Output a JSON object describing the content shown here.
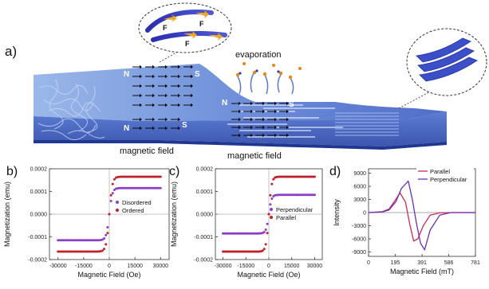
{
  "figure": {
    "panel_a": {
      "label": "a)",
      "evaporation": "evaporation",
      "magnetic_field_left": "magnetic field",
      "magnetic_field_mid": "magnetic field",
      "pole_n": "N",
      "pole_s": "S",
      "force_label": "F"
    }
  },
  "chart_data": [
    {
      "panel": "b)",
      "type": "scatter",
      "xlabel": "Magnetic Field (Oe)",
      "ylabel": "Magnetization (emu)",
      "xlim": [
        -35000,
        35000
      ],
      "ylim": [
        -0.0002,
        0.0002
      ],
      "xticks": [
        -30000,
        -15000,
        0,
        15000,
        30000
      ],
      "xtick_labels": [
        "-30000",
        "-15000",
        "0",
        "15000",
        "30000"
      ],
      "yticks": [
        -0.0002,
        -0.0001,
        0,
        0.0001,
        0.0002
      ],
      "ytick_labels": [
        "-0.0002",
        "-0.0001",
        "0.0000",
        "0.0001",
        "0.0002"
      ],
      "legend_position": "center-right",
      "series": [
        {
          "name": "Disordered",
          "color": "#8a3fc8",
          "saturation": 0.000115
        },
        {
          "name": "Ordered",
          "color": "#c0202a",
          "saturation": 0.000165
        }
      ]
    },
    {
      "panel": "c)",
      "type": "scatter",
      "xlabel": "Magnetic Field (Oe)",
      "ylabel": "Magnetization (emu)",
      "xlim": [
        -35000,
        35000
      ],
      "ylim": [
        -0.0002,
        0.0002
      ],
      "xticks": [
        -30000,
        -15000,
        0,
        15000,
        30000
      ],
      "xtick_labels": [
        "-30000",
        "-15000",
        "0",
        "15000",
        "30000"
      ],
      "yticks": [
        -0.0002,
        -0.0001,
        0,
        0.0001,
        0.0002
      ],
      "ytick_labels": [
        "-0.0002",
        "-0.0001",
        "0.0000",
        "0.0001",
        "0.0002"
      ],
      "legend_position": "center-right",
      "series": [
        {
          "name": "Perpendicular",
          "color": "#8a3fc8",
          "saturation": 8.5e-05
        },
        {
          "name": "Parallel",
          "color": "#c0202a",
          "saturation": 0.000165
        }
      ]
    },
    {
      "panel": "d)",
      "type": "line",
      "xlabel": "Magnetic Field (mT)",
      "ylabel": "Intensity",
      "xlim": [
        0,
        781
      ],
      "ylim": [
        -10000,
        10000
      ],
      "xticks": [
        0,
        195,
        391,
        586,
        781
      ],
      "xtick_labels": [
        "0",
        "195",
        "391",
        "586",
        "781"
      ],
      "yticks": [
        -9000,
        -6000,
        -3000,
        0,
        3000,
        6000,
        9000
      ],
      "ytick_labels": [
        "-9000",
        "-6000",
        "-3000",
        "0",
        "3000",
        "6000",
        "9000"
      ],
      "legend_position": "top-right",
      "series": [
        {
          "name": "Parallel",
          "color": "#d02a55",
          "x": [
            0,
            100,
            150,
            190,
            230,
            270,
            300,
            330,
            360,
            400,
            450,
            520,
            600,
            781
          ],
          "y": [
            0,
            200,
            800,
            2600,
            4500,
            2400,
            -2500,
            -6500,
            -6000,
            -3000,
            -600,
            -80,
            0,
            0
          ]
        },
        {
          "name": "Perpendicular",
          "color": "#6a2fb8",
          "x": [
            0,
            100,
            150,
            200,
            240,
            290,
            320,
            350,
            380,
            410,
            450,
            520,
            600,
            781
          ],
          "y": [
            0,
            150,
            600,
            2500,
            5500,
            7200,
            3000,
            -2500,
            -7000,
            -8500,
            -4000,
            -600,
            0,
            0
          ]
        }
      ]
    }
  ]
}
